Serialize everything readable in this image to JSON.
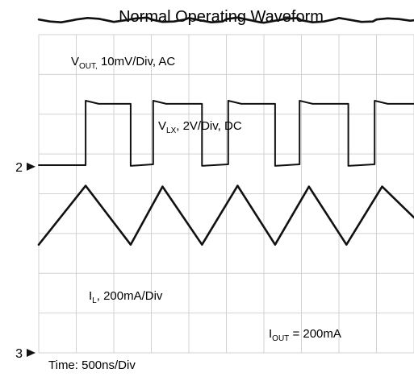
{
  "chart_data": {
    "type": "line",
    "title": "Normal Operating Waveform",
    "xlabel": "Time: 500ns/Div",
    "time_per_div_ns": 500,
    "grid": true,
    "condition": {
      "prefix": "I",
      "sub": "OUT",
      "suffix": " = 200mA"
    },
    "channel_markers": [
      {
        "label": "2",
        "ref_div": 4.68
      },
      {
        "label": "3",
        "ref_div": 0.0
      }
    ],
    "series": [
      {
        "name": "VOUT",
        "label": {
          "prefix": "V",
          "sub": "OUT,",
          "suffix": " 10mV/Div, AC"
        },
        "scale": "10mV/Div",
        "coupling": "AC",
        "description": "near-flat output voltage with small ripple",
        "x": [
          0,
          0.3,
          0.6,
          0.9,
          1.0,
          1.3,
          1.6,
          1.9,
          2.0,
          2.3,
          2.6,
          2.9,
          3.0,
          3.3,
          3.6,
          3.9,
          4.0,
          4.3,
          4.6,
          4.9,
          5.0,
          5.3,
          5.6,
          5.9,
          6.0,
          6.3,
          6.6,
          6.9,
          7.0,
          7.3,
          7.6,
          7.9,
          8.0,
          8.3,
          8.6,
          8.9,
          9.0,
          9.3,
          9.6,
          9.9,
          10.0
        ],
        "y": [
          8.38,
          8.33,
          8.31,
          8.36,
          8.38,
          8.42,
          8.4,
          8.34,
          8.32,
          8.36,
          8.41,
          8.43,
          8.38,
          8.32,
          8.33,
          8.38,
          8.42,
          8.36,
          8.31,
          8.33,
          8.39,
          8.43,
          8.37,
          8.31,
          8.3,
          8.35,
          8.4,
          8.42,
          8.36,
          8.31,
          8.33,
          8.39,
          8.42,
          8.37,
          8.32,
          8.33,
          8.38,
          8.41,
          8.39,
          8.35,
          8.36
        ]
      },
      {
        "name": "VLX",
        "label": {
          "prefix": "V",
          "sub": "LX",
          "suffix": ", 2V/Div, DC"
        },
        "scale": "2V/Div",
        "coupling": "DC",
        "description": "switch-node square wave",
        "x": [
          0,
          1.25,
          1.25,
          1.6,
          1.6,
          2.45,
          2.45,
          3.05,
          3.05,
          3.4,
          3.4,
          4.35,
          4.35,
          5.05,
          5.05,
          5.4,
          5.4,
          6.3,
          6.3,
          6.95,
          6.95,
          7.3,
          7.3,
          8.25,
          8.25,
          8.95,
          8.95,
          9.3,
          9.3,
          10.0
        ],
        "y": [
          4.72,
          4.72,
          6.34,
          6.26,
          6.26,
          6.26,
          4.7,
          4.74,
          6.34,
          6.26,
          6.26,
          6.26,
          4.7,
          4.74,
          6.34,
          6.26,
          6.26,
          6.26,
          4.7,
          4.74,
          6.34,
          6.26,
          6.26,
          6.26,
          4.7,
          4.74,
          6.34,
          6.26,
          6.26,
          6.26
        ]
      },
      {
        "name": "IL",
        "label": {
          "prefix": "I",
          "sub": "L",
          "suffix": ", 200mA/Div"
        },
        "scale": "200mA/Div",
        "coupling": "",
        "description": "triangular inductor current",
        "x": [
          0,
          1.25,
          2.45,
          3.3,
          4.35,
          5.3,
          6.3,
          7.2,
          8.2,
          9.15,
          10.0
        ],
        "y": [
          2.72,
          4.2,
          2.72,
          4.18,
          2.72,
          4.2,
          2.72,
          4.18,
          2.72,
          4.18,
          3.4
        ]
      }
    ]
  }
}
